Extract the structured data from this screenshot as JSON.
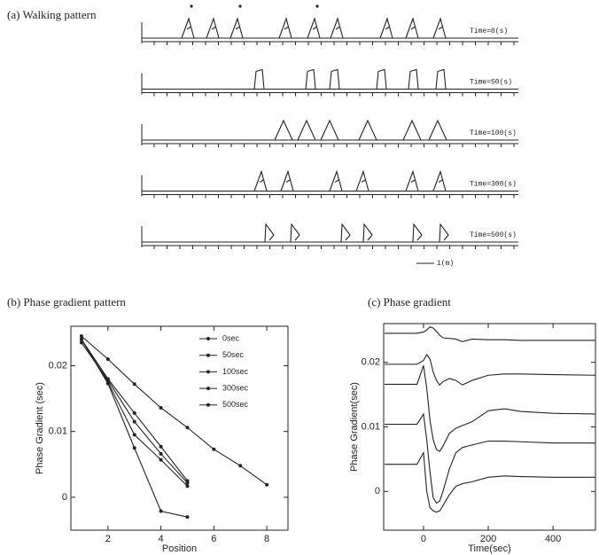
{
  "walking_pattern": {
    "title": "(a) Walking pattern",
    "rows": [
      "Time=0(s)",
      "Time=50(s)",
      "Time=100(s)",
      "Time=300(s)",
      "Time=500(s)"
    ],
    "scale_label": "1(m)"
  },
  "chart_data": [
    {
      "type": "line",
      "title": "(b) Phase gradient pattern",
      "x_label": "Position",
      "y_label": "Phase Gradient (sec)",
      "x": [
        1,
        2,
        3,
        4,
        5,
        6,
        7,
        8
      ],
      "xlim": [
        0.6,
        8.8
      ],
      "ylim": [
        -0.005,
        0.026
      ],
      "xticks": [
        2,
        4,
        6,
        8
      ],
      "yticks": [
        0,
        0.01,
        0.02
      ],
      "markers": true,
      "series": [
        {
          "name": "0sec",
          "color": "#222222",
          "values": [
            0.0245,
            0.021,
            0.0172,
            0.0136,
            0.0106,
            0.0073,
            0.0048,
            0.0019
          ]
        },
        {
          "name": "50sec",
          "color": "#222222",
          "values": [
            0.024,
            0.0173,
            0.0075,
            -0.0021,
            -0.003,
            null,
            null,
            null
          ]
        },
        {
          "name": "100sec",
          "color": "#222222",
          "values": [
            0.024,
            0.0175,
            0.0095,
            0.0057,
            0.0017,
            null,
            null,
            null
          ]
        },
        {
          "name": "300sec",
          "color": "#222222",
          "values": [
            0.024,
            0.018,
            0.0128,
            0.0077,
            0.0025,
            null,
            null,
            null
          ]
        },
        {
          "name": "500sec",
          "color": "#222222",
          "values": [
            0.0235,
            0.0178,
            0.0115,
            0.0066,
            0.0022,
            null,
            null,
            null
          ]
        }
      ]
    },
    {
      "type": "line",
      "title": "(c) Phase gradient",
      "x_label": "Time(sec)",
      "y_label": "Phase Gradient(sec)",
      "x": [
        -120,
        -60,
        -20,
        0,
        10,
        20,
        30,
        40,
        50,
        60,
        80,
        100,
        120,
        150,
        200,
        250,
        300,
        400,
        530
      ],
      "xlim": [
        -123,
        531
      ],
      "ylim": [
        -0.006,
        0.026
      ],
      "xticks": [
        0,
        200,
        400
      ],
      "yticks": [
        0,
        0.01,
        0.02
      ],
      "markers": false,
      "series": [
        {
          "color": "#222222",
          "values": [
            0.0245,
            0.0245,
            0.0245,
            0.0247,
            0.025,
            0.0255,
            0.0253,
            0.0248,
            0.0242,
            0.0238,
            0.0237,
            0.0236,
            0.0232,
            0.0236,
            0.0235,
            0.0235,
            0.0234,
            0.0234,
            0.0234
          ]
        },
        {
          "color": "#222222",
          "values": [
            0.0197,
            0.0197,
            0.0197,
            0.0203,
            0.0212,
            0.0205,
            0.0185,
            0.0172,
            0.0165,
            0.017,
            0.0175,
            0.0172,
            0.0165,
            0.0172,
            0.018,
            0.0182,
            0.0182,
            0.0181,
            0.018
          ]
        },
        {
          "color": "#222222",
          "values": [
            0.0166,
            0.0166,
            0.0166,
            0.0195,
            0.016,
            0.011,
            0.008,
            0.0065,
            0.0062,
            0.007,
            0.009,
            0.0098,
            0.0102,
            0.0108,
            0.0125,
            0.0128,
            0.0124,
            0.0121,
            0.012
          ]
        },
        {
          "color": "#222222",
          "values": [
            0.0104,
            0.0104,
            0.0104,
            0.012,
            0.008,
            0.003,
            -0.001,
            -0.0018,
            -0.0015,
            0.0,
            0.0035,
            0.006,
            0.0068,
            0.0072,
            0.0078,
            0.0078,
            0.0077,
            0.0075,
            0.0075
          ]
        },
        {
          "color": "#222222",
          "values": [
            0.0042,
            0.0042,
            0.0042,
            0.006,
            0.0,
            -0.0025,
            -0.003,
            -0.0032,
            -0.003,
            -0.0022,
            -0.0005,
            0.0008,
            0.0012,
            0.0015,
            0.0022,
            0.0024,
            0.0023,
            0.0022,
            0.0022
          ]
        }
      ]
    }
  ]
}
